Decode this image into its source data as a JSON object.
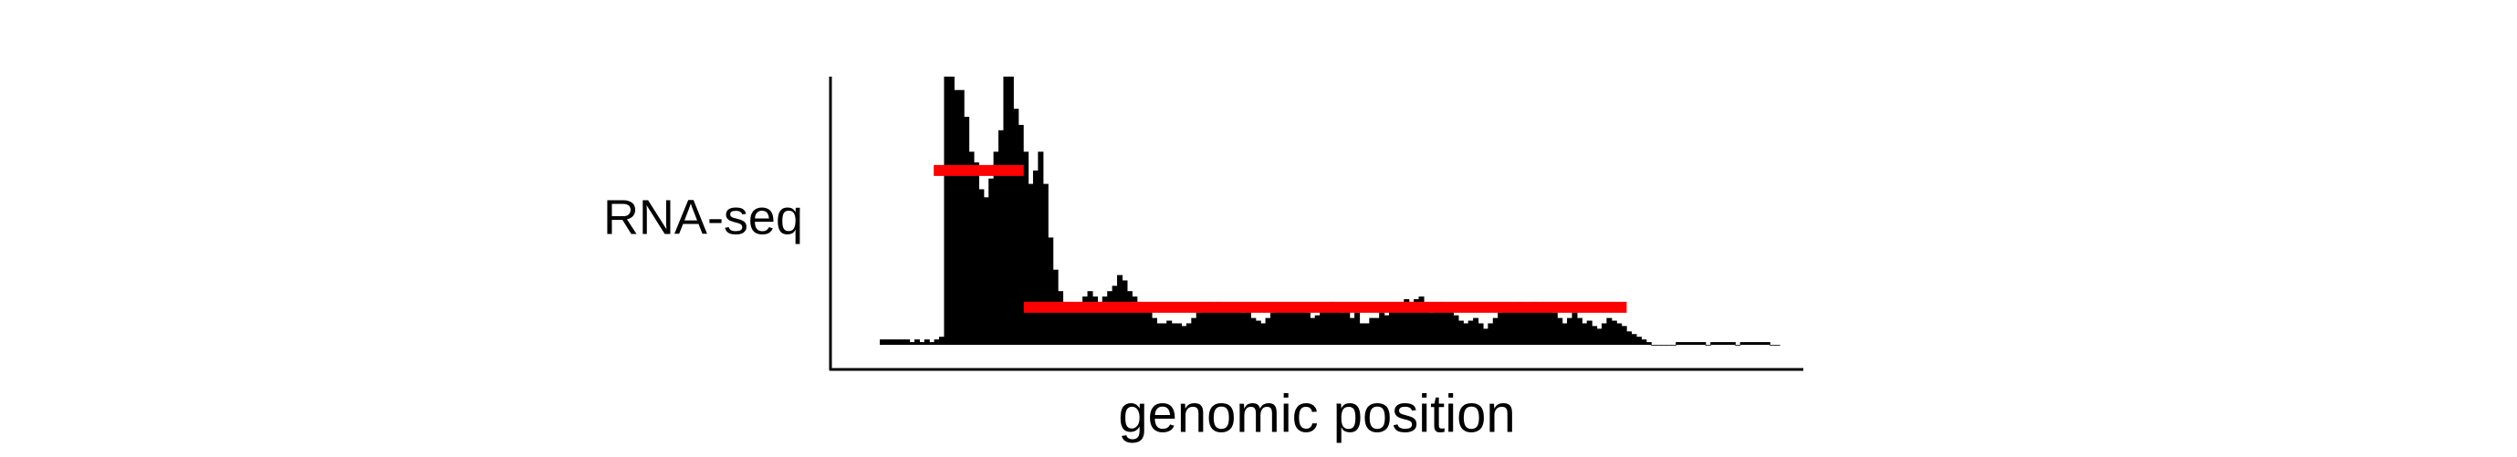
{
  "chart_data": {
    "type": "bar",
    "ylabel": "RNA-seq",
    "xlabel": "genomic position",
    "grid": false,
    "legend": "none",
    "xlim": [
      0,
      100
    ],
    "ylim": [
      0,
      100
    ],
    "colors": {
      "bars": "#000000",
      "segments": "#ff0000",
      "axes": "#000000"
    },
    "series": [
      {
        "values": [
          2,
          2,
          2,
          2,
          2,
          2,
          1,
          2,
          1,
          2,
          1,
          2,
          3,
          100,
          100,
          95,
          95,
          85,
          72,
          68,
          58,
          55,
          62,
          72,
          80,
          100,
          100,
          88,
          82,
          72,
          60,
          65,
          72,
          60,
          40,
          28,
          20,
          16,
          16,
          14,
          16,
          18,
          20,
          18,
          16,
          18,
          20,
          22,
          26,
          24,
          20,
          18,
          16,
          15,
          14,
          10,
          8,
          8,
          9,
          8,
          8,
          7,
          8,
          10,
          12,
          14,
          16,
          14,
          16,
          15,
          13,
          15,
          14,
          12,
          13,
          10,
          9,
          8,
          10,
          12,
          14,
          15,
          14,
          15,
          14,
          13,
          12,
          10,
          11,
          14,
          15,
          16,
          14,
          12,
          13,
          10,
          12,
          8,
          8,
          10,
          10,
          12,
          11,
          13,
          15,
          16,
          17,
          16,
          17,
          18,
          14,
          12,
          14,
          16,
          15,
          13,
          11,
          9,
          8,
          9,
          10,
          8,
          6,
          8,
          10,
          12,
          14,
          15,
          14,
          16,
          14,
          15,
          16,
          14,
          15,
          14,
          12,
          10,
          8,
          10,
          12,
          10,
          8,
          9,
          7,
          6,
          8,
          10,
          9,
          8,
          7,
          5,
          4,
          3,
          2,
          1,
          0,
          0,
          0,
          0,
          0,
          1,
          1,
          1,
          1,
          1,
          1,
          0,
          1,
          1,
          1,
          1,
          1,
          0,
          1,
          1,
          1,
          1,
          1,
          1,
          0,
          0
        ]
      }
    ],
    "segments": [
      {
        "x_start": 6,
        "x_end": 16,
        "y": 65
      },
      {
        "x_start": 16,
        "x_end": 83,
        "y": 14
      }
    ]
  }
}
